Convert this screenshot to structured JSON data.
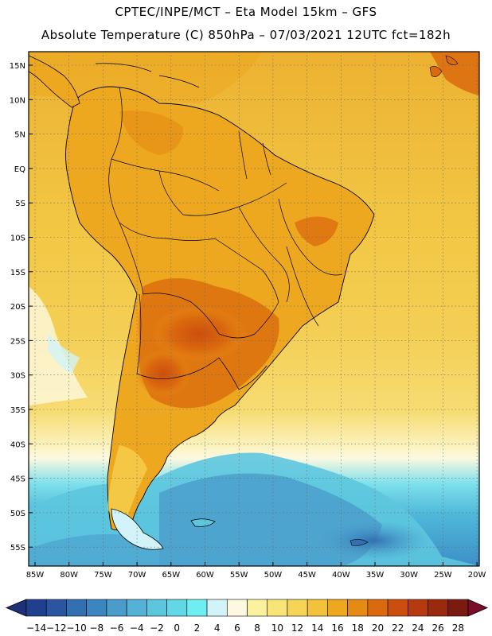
{
  "header": {
    "title_line1": "CPTEC/INPE/MCT –  Eta Model 15km – GFS",
    "title_line2": "Absolute Temperature (C) 850hPa – 07/03/2021 12UTC fct=182h"
  },
  "map": {
    "lat_labels": [
      "15N",
      "10N",
      "5N",
      "EQ",
      "5S",
      "10S",
      "15S",
      "20S",
      "25S",
      "30S",
      "35S",
      "40S",
      "45S",
      "50S",
      "55S"
    ],
    "lon_labels": [
      "85W",
      "80W",
      "75W",
      "70W",
      "65W",
      "60W",
      "55W",
      "50W",
      "45W",
      "40W",
      "35W",
      "30W",
      "25W",
      "20W"
    ]
  },
  "colorbar": {
    "labels": [
      "-14",
      "-12",
      "-10",
      "-8",
      "-6",
      "-4",
      "-2",
      "0",
      "2",
      "4",
      "6",
      "8",
      "10",
      "12",
      "14",
      "16",
      "18",
      "20",
      "22",
      "24",
      "26",
      "28"
    ],
    "colors": [
      "#1f3f8f",
      "#2a55a0",
      "#3270b2",
      "#3a86c0",
      "#4a9ccb",
      "#55b2d6",
      "#5dc6df",
      "#62d8e6",
      "#6eeef2",
      "#d2f4f8",
      "#fdf9e0",
      "#fcf29e",
      "#f9e478",
      "#f6d456",
      "#f2c33a",
      "#eda820",
      "#e58a12",
      "#db6a0e",
      "#cc4e0e",
      "#b63a0e",
      "#9a2a0e",
      "#7a1a10"
    ],
    "under_color": "#1f2f78",
    "over_color": "#7a0e2a"
  }
}
